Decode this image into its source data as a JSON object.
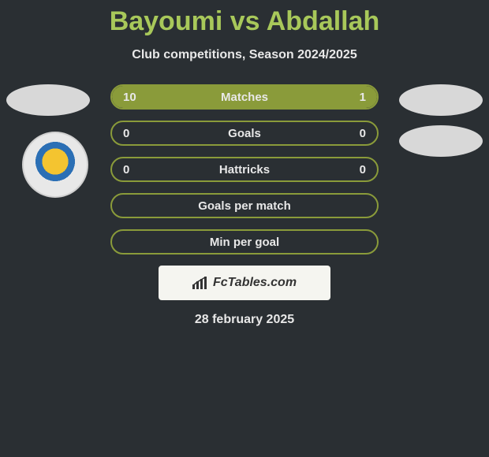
{
  "title": "Bayoumi vs Abdallah",
  "subtitle": "Club competitions, Season 2024/2025",
  "date": "28 february 2025",
  "watermark": "FcTables.com",
  "colors": {
    "bg": "#2a2f33",
    "accent": "#a8c85a",
    "bar_fill": "#8a9b3a",
    "bar_border": "#8a9b3a",
    "text": "#e8e8e8",
    "avatar_bg": "#d8d8d8",
    "watermark_bg": "#f5f5f0"
  },
  "bars": [
    {
      "label": "Matches",
      "left": "10",
      "right": "1",
      "left_pct": 80,
      "right_pct": 20
    },
    {
      "label": "Goals",
      "left": "0",
      "right": "0",
      "left_pct": 0,
      "right_pct": 0
    },
    {
      "label": "Hattricks",
      "left": "0",
      "right": "0",
      "left_pct": 0,
      "right_pct": 0
    },
    {
      "label": "Goals per match",
      "left": "",
      "right": "",
      "left_pct": 0,
      "right_pct": 0
    },
    {
      "label": "Min per goal",
      "left": "",
      "right": "",
      "left_pct": 0,
      "right_pct": 0
    }
  ]
}
